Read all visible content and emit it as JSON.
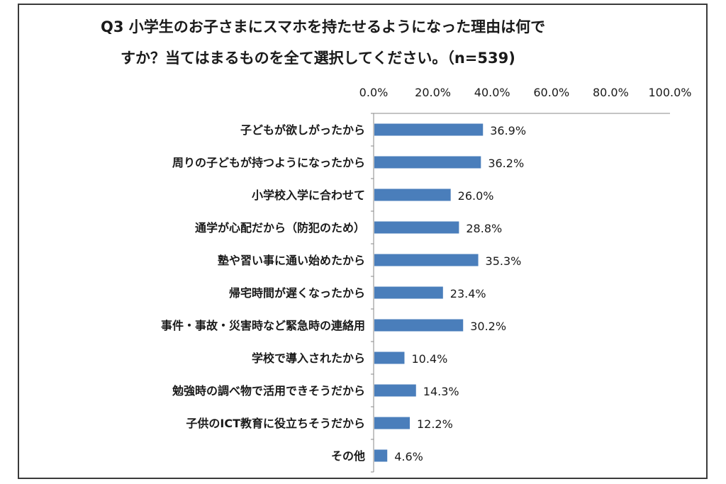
{
  "chart_data": {
    "type": "bar",
    "orientation": "horizontal",
    "title_line1": "Q3 小学生のお子さまにスマホを持たせるようになった理由は何で",
    "title_line2": "すか？当てはまるものを全て選択してください。（n=539)",
    "xlim": [
      0,
      100
    ],
    "x_ticks": [
      "0.0%",
      "20.0%",
      "40.0%",
      "60.0%",
      "80.0%",
      "100.0%"
    ],
    "x_axis_position": "top",
    "grid": false,
    "categories": [
      "子どもが欲しがったから",
      "周りの子どもが持つようになったから",
      "小学校入学に合わせて",
      "通学が心配だから（防犯のため）",
      "塾や習い事に通い始めたから",
      "帰宅時間が遅くなったから",
      "事件・事故・災害時など緊急時の連絡用",
      "学校で導入されたから",
      "勉強時の調べ物で活用できそうだから",
      "子供のICT教育に役立ちそうだから",
      "その他"
    ],
    "values": [
      36.9,
      36.2,
      26.0,
      28.8,
      35.3,
      23.4,
      30.2,
      10.4,
      14.3,
      12.2,
      4.6
    ],
    "value_labels": [
      "36.9%",
      "36.2%",
      "26.0%",
      "28.8%",
      "35.3%",
      "23.4%",
      "30.2%",
      "10.4%",
      "14.3%",
      "12.2%",
      "4.6%"
    ],
    "bar_color": "#4a7ebb"
  }
}
